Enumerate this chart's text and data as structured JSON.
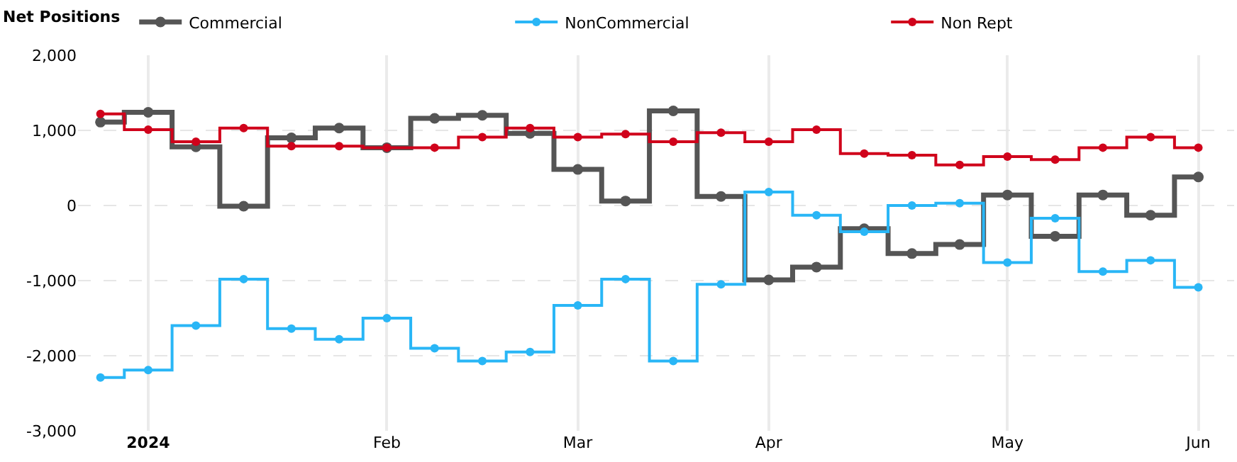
{
  "chart_data": {
    "type": "step",
    "legend_title": "Net Positions",
    "categories": [
      null,
      "2024",
      null,
      null,
      null,
      null,
      "Feb",
      null,
      null,
      null,
      "Mar",
      null,
      null,
      null,
      "Apr",
      null,
      null,
      null,
      null,
      "May",
      null,
      null,
      null,
      "Jun"
    ],
    "series": [
      {
        "name": "Commercial",
        "color": "#555555",
        "values": [
          1110,
          1240,
          780,
          -10,
          900,
          1030,
          770,
          1160,
          1200,
          960,
          480,
          60,
          1260,
          120,
          -990,
          -820,
          -310,
          -640,
          -520,
          140,
          -410,
          140,
          -130,
          380
        ]
      },
      {
        "name": "NonCommercial",
        "color": "#29b6f6",
        "values": [
          -2290,
          -2190,
          -1600,
          -980,
          -1640,
          -1780,
          -1500,
          -1900,
          -2070,
          -1950,
          -1330,
          -980,
          -2070,
          -1050,
          180,
          -130,
          -350,
          0,
          30,
          -760,
          -170,
          -880,
          -730,
          -1090
        ]
      },
      {
        "name": "Non Rept",
        "color": "#d0021b",
        "values": [
          1220,
          1010,
          850,
          1030,
          790,
          790,
          770,
          770,
          910,
          1030,
          910,
          950,
          850,
          970,
          850,
          1010,
          690,
          670,
          540,
          650,
          610,
          770,
          910,
          770
        ]
      }
    ],
    "ylim": [
      -3000,
      2000
    ],
    "yticks": [
      {
        "value": -3000,
        "label": "-3,000"
      },
      {
        "value": -2000,
        "label": "-2,000"
      },
      {
        "value": -1000,
        "label": "-1,000"
      },
      0,
      {
        "value": 1000,
        "label": "1,000"
      },
      {
        "value": 2000,
        "label": "2,000"
      }
    ],
    "grid": true,
    "legend": "top left",
    "marker": "circle",
    "line_style": "solid"
  }
}
